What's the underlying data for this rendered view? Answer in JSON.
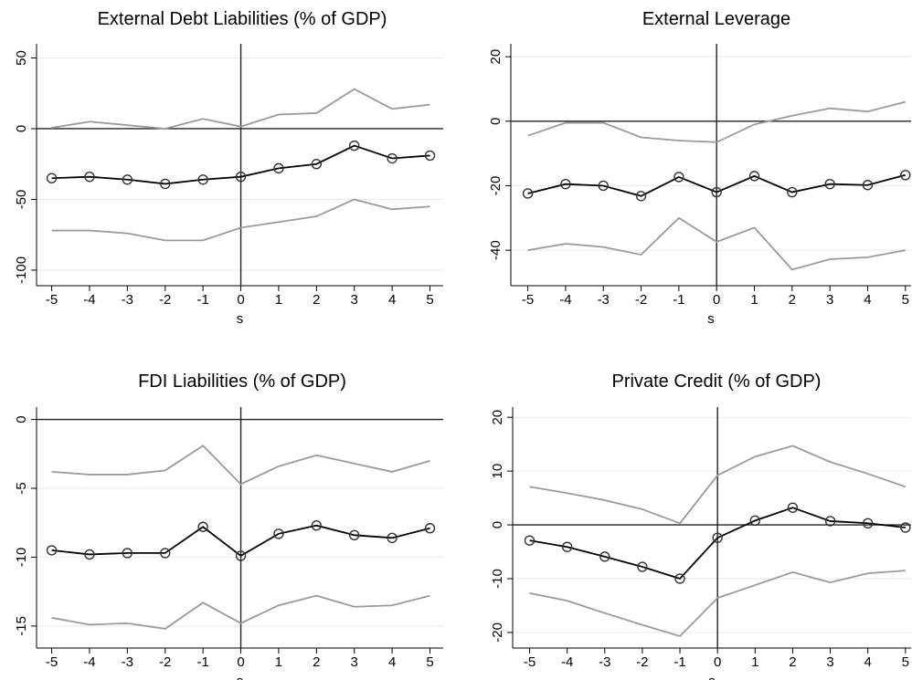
{
  "chart_data": [
    {
      "type": "line",
      "title": "External Debt Liabilities (% of GDP)",
      "x_label": "s",
      "x": [
        -5,
        -4,
        -3,
        -2,
        -1,
        0,
        1,
        2,
        3,
        4,
        5
      ],
      "xlim": [
        -5.4,
        5.35
      ],
      "xticks": [
        -5,
        -4,
        -3,
        -2,
        -1,
        0,
        1,
        2,
        3,
        4,
        5
      ],
      "ylim": [
        -111,
        60
      ],
      "yticks": [
        -100,
        -50,
        0,
        50
      ],
      "grid": true,
      "reference_lines": {
        "x": 0,
        "y": 0
      },
      "series": [
        {
          "color": "#9a9a9a",
          "values": [
            0.6,
            5,
            2.5,
            0,
            7,
            1.5,
            10,
            11,
            28,
            14,
            17
          ]
        },
        {
          "color": "#000000",
          "marker": "circle",
          "values": [
            -35,
            -34,
            -36,
            -39,
            -36,
            -34,
            -28,
            -25,
            -12,
            -21,
            -19
          ]
        },
        {
          "color": "#9a9a9a",
          "values": [
            -72,
            -72,
            -74,
            -79,
            -79,
            -70,
            -66,
            -62,
            -50,
            -57,
            -55
          ]
        }
      ]
    },
    {
      "type": "line",
      "title": "External Leverage",
      "x_label": "s",
      "x": [
        -5,
        -4,
        -3,
        -2,
        -1,
        0,
        1,
        2,
        3,
        4,
        5
      ],
      "xlim": [
        -5.45,
        5.15
      ],
      "xticks": [
        -5,
        -4,
        -3,
        -2,
        -1,
        0,
        1,
        2,
        3,
        4,
        5
      ],
      "ylim": [
        -51,
        24
      ],
      "yticks": [
        -40,
        -20,
        0,
        20
      ],
      "grid": true,
      "reference_lines": {
        "x": 0,
        "y": 0
      },
      "series": [
        {
          "color": "#9a9a9a",
          "values": [
            -4.5,
            -0.5,
            -0.5,
            -5,
            -6,
            -6.5,
            -1,
            1.7,
            4,
            3,
            6
          ]
        },
        {
          "color": "#000000",
          "marker": "circle",
          "values": [
            -22.4,
            -19.5,
            -20,
            -23.2,
            -17.3,
            -22,
            -17,
            -22,
            -19.5,
            -19.8,
            -16.7
          ]
        },
        {
          "color": "#9a9a9a",
          "values": [
            -40,
            -38,
            -39,
            -41.4,
            -30,
            -37.4,
            -33,
            -46,
            -42.8,
            -42.2,
            -40
          ]
        }
      ]
    },
    {
      "type": "line",
      "title": "FDI Liabilities (% of GDP)",
      "x_label": "s",
      "x": [
        -5,
        -4,
        -3,
        -2,
        -1,
        0,
        1,
        2,
        3,
        4,
        5
      ],
      "xlim": [
        -5.4,
        5.35
      ],
      "xticks": [
        -5,
        -4,
        -3,
        -2,
        -1,
        0,
        1,
        2,
        3,
        4,
        5
      ],
      "ylim": [
        -16.6,
        0.9
      ],
      "yticks": [
        -15,
        -10,
        -5,
        0
      ],
      "grid": true,
      "reference_lines": {
        "x": 0,
        "y": 0
      },
      "series": [
        {
          "color": "#9a9a9a",
          "values": [
            -3.8,
            -4.0,
            -4.0,
            -3.7,
            -1.9,
            -4.7,
            -3.4,
            -2.6,
            -3.2,
            -3.8,
            -3.0
          ]
        },
        {
          "color": "#000000",
          "marker": "circle",
          "values": [
            -9.5,
            -9.8,
            -9.7,
            -9.7,
            -7.8,
            -9.9,
            -8.3,
            -7.7,
            -8.4,
            -8.6,
            -7.9
          ]
        },
        {
          "color": "#9a9a9a",
          "values": [
            -14.4,
            -14.9,
            -14.8,
            -15.2,
            -13.3,
            -14.8,
            -13.5,
            -12.8,
            -13.6,
            -13.5,
            -12.8
          ]
        }
      ]
    },
    {
      "type": "line",
      "title": "Private Credit (% of GDP)",
      "x_label": "s",
      "x": [
        -5,
        -4,
        -3,
        -2,
        -1,
        0,
        1,
        2,
        3,
        4,
        5
      ],
      "xlim": [
        -5.45,
        5.15
      ],
      "xticks": [
        -5,
        -4,
        -3,
        -2,
        -1,
        0,
        1,
        2,
        3,
        4,
        5
      ],
      "ylim": [
        -22.9,
        21.9
      ],
      "yticks": [
        -20,
        -10,
        0,
        10,
        20
      ],
      "grid": true,
      "reference_lines": {
        "x": 0,
        "y": 0
      },
      "series": [
        {
          "color": "#9a9a9a",
          "values": [
            7.1,
            5.9,
            4.6,
            2.9,
            0.3,
            9.2,
            12.7,
            14.7,
            11.7,
            9.5,
            7.1
          ]
        },
        {
          "color": "#000000",
          "marker": "circle",
          "values": [
            -2.9,
            -4.1,
            -5.9,
            -7.8,
            -10,
            -2.4,
            0.8,
            3.2,
            0.7,
            0.3,
            -0.5
          ]
        },
        {
          "color": "#9a9a9a",
          "values": [
            -12.7,
            -14.1,
            -16.4,
            -18.6,
            -20.7,
            -13.6,
            -11.2,
            -8.8,
            -10.7,
            -9,
            -8.5
          ]
        }
      ]
    }
  ]
}
